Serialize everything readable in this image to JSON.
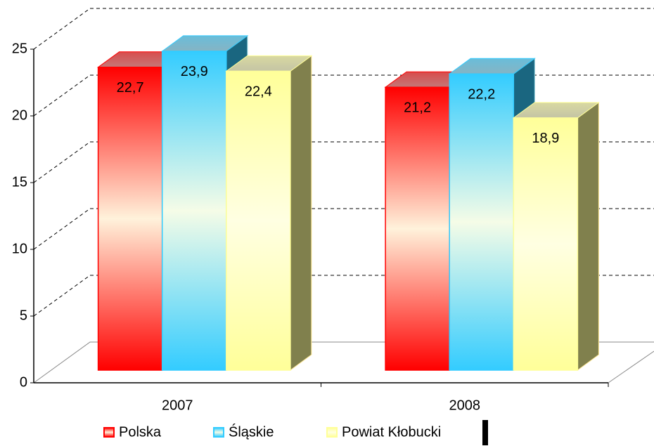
{
  "chart_data": {
    "type": "bar3d",
    "categories": [
      "2007",
      "2008"
    ],
    "series": [
      {
        "name": "Polska",
        "color": "#ff0000",
        "values": [
          22.7,
          21.2
        ],
        "value_labels": [
          "22,7",
          "21,2"
        ]
      },
      {
        "name": "Śląskie",
        "color": "#33ccff",
        "values": [
          23.9,
          22.2
        ],
        "value_labels": [
          "23,9",
          "22,2"
        ]
      },
      {
        "name": "Powiat Kłobucki",
        "color": "#ffff99",
        "values": [
          22.4,
          18.9
        ],
        "value_labels": [
          "22,4",
          "18,9"
        ]
      }
    ],
    "ylim": [
      0,
      25
    ],
    "yticks": [
      0,
      5,
      10,
      15,
      20,
      25
    ],
    "grid": true,
    "legend": "bottom"
  }
}
